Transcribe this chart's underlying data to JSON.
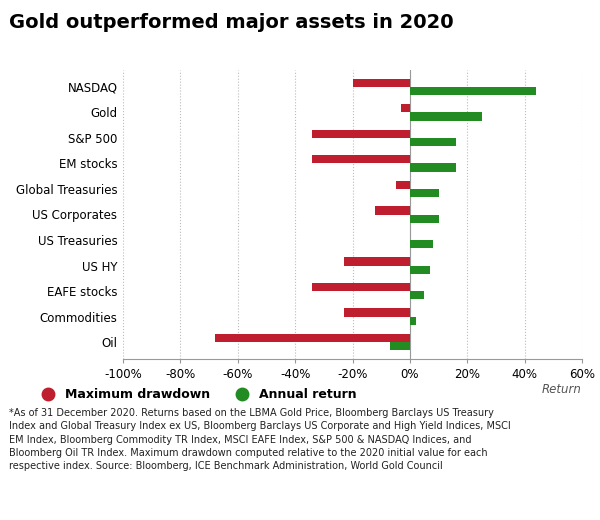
{
  "title": "Gold outperformed major assets in 2020",
  "categories": [
    "NASDAQ",
    "Gold",
    "S&P 500",
    "EM stocks",
    "Global Treasuries",
    "US Corporates",
    "US Treasuries",
    "US HY",
    "EAFE stocks",
    "Commodities",
    "Oil"
  ],
  "max_drawdown": [
    -20,
    -3,
    -34,
    -34,
    -5,
    -12,
    0,
    -23,
    -34,
    -23,
    -68
  ],
  "annual_return": [
    44,
    25,
    16,
    16,
    10,
    10,
    8,
    7,
    5,
    2,
    -7
  ],
  "drawdown_color": "#be1e2d",
  "return_color": "#228b22",
  "bar_height": 0.32,
  "xlim": [
    -100,
    60
  ],
  "xticks": [
    -100,
    -80,
    -60,
    -40,
    -20,
    0,
    20,
    40,
    60
  ],
  "xlabel": "Return",
  "title_fontsize": 14,
  "tick_fontsize": 8.5,
  "cat_fontsize": 8.5,
  "footnote_line1": "*As of 31 December 2020. Returns based on the LBMA Gold Price, Bloomberg Barclays US Treasury",
  "footnote_line2": "Index and Global Treasury Index ex US, Bloomberg Barclays US Corporate and High Yield Indices, MSCI",
  "footnote_line3": "EM Index, Bloomberg Commodity TR Index, MSCI EAFE Index, S&P 500 & NASDAQ Indices, and",
  "footnote_line4": "Bloomberg Oil TR Index. Maximum drawdown computed relative to the 2020 initial value for each",
  "footnote_line5": "respective index. Source: Bloomberg, ICE Benchmark Administration, World Gold Council",
  "legend_drawdown": "Maximum drawdown",
  "legend_return": "Annual return",
  "bg_color": "#ffffff",
  "grid_color": "#bbbbbb"
}
